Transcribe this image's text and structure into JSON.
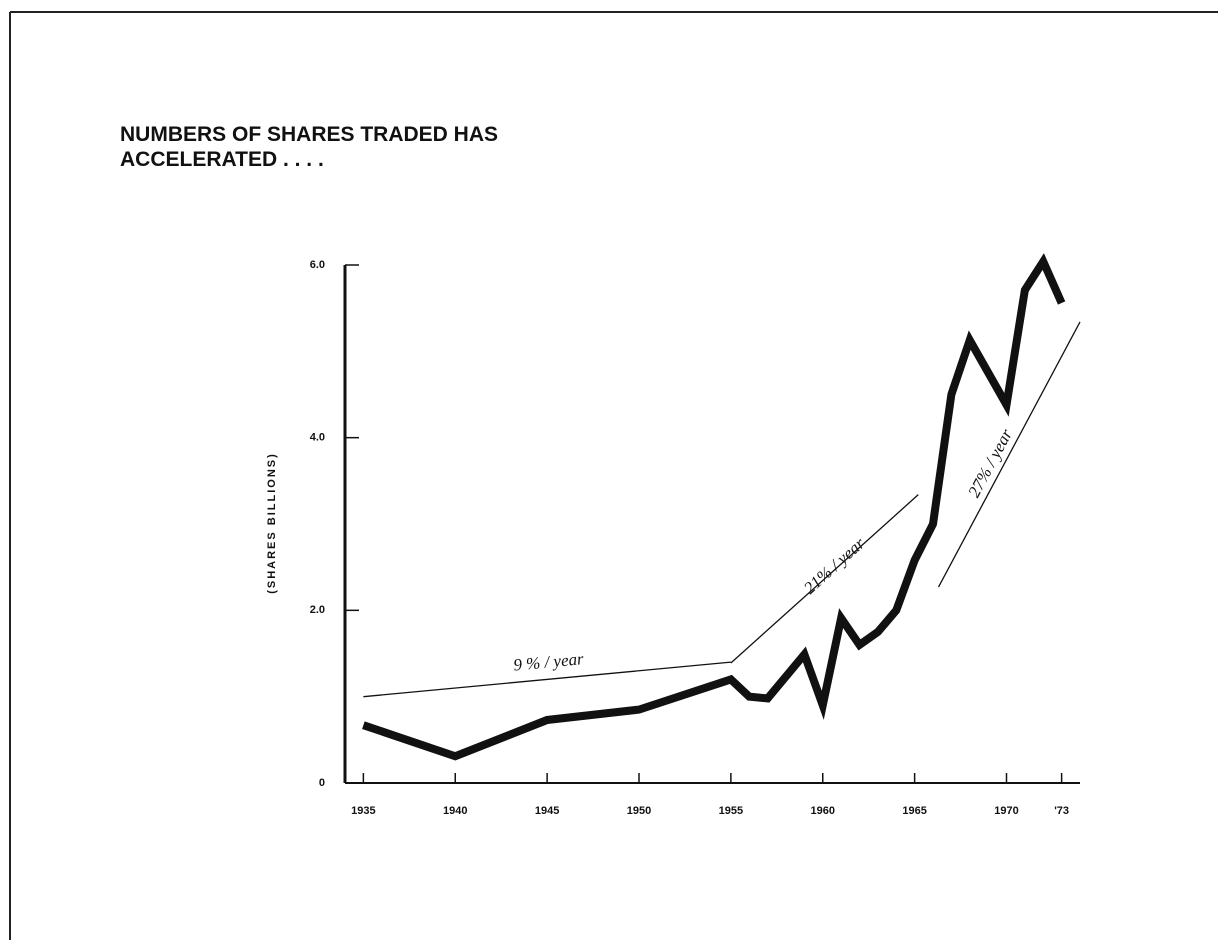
{
  "chart_data": {
    "type": "line",
    "title": "NUMBERS OF SHARES TRADED HAS ACCELERATED . . . .",
    "y_label": "(SHARES BILLIONS)",
    "x": [
      1935,
      1940,
      1945,
      1950,
      1955,
      1956,
      1957,
      1959,
      1960,
      1961,
      1962,
      1963,
      1964,
      1965,
      1966,
      1967,
      1968,
      1970,
      1971,
      1972,
      1973
    ],
    "series": [
      {
        "name": "Shares traded",
        "color": "#111111",
        "values": [
          0.67,
          0.31,
          0.73,
          0.85,
          1.2,
          1.0,
          0.98,
          1.49,
          0.9,
          1.91,
          1.6,
          1.75,
          2.0,
          2.58,
          3.0,
          4.5,
          5.13,
          4.38,
          5.71,
          6.04,
          5.56
        ]
      }
    ],
    "xlim": [
      1934,
      1974
    ],
    "xticks": [
      1935,
      1940,
      1945,
      1950,
      1955,
      1960,
      1965,
      1970,
      {
        "value": 1973,
        "label": "'73"
      }
    ],
    "ylim": [
      0,
      6
    ],
    "yticks": [
      0,
      {
        "value": 2,
        "label": "2.0"
      },
      {
        "value": 4,
        "label": "4.0"
      },
      {
        "value": 6,
        "label": "6.0"
      }
    ],
    "grid": false,
    "annotations": [
      {
        "text": "9 % / year",
        "x": [
          1935,
          1955
        ],
        "y": [
          1.0,
          1.4
        ]
      },
      {
        "text": "21% / year",
        "x": [
          1955,
          1965.2
        ],
        "y": [
          1.39,
          3.34
        ]
      },
      {
        "text": "27% / year",
        "x": [
          1966.3,
          1974
        ],
        "y": [
          2.27,
          5.34
        ]
      }
    ]
  }
}
